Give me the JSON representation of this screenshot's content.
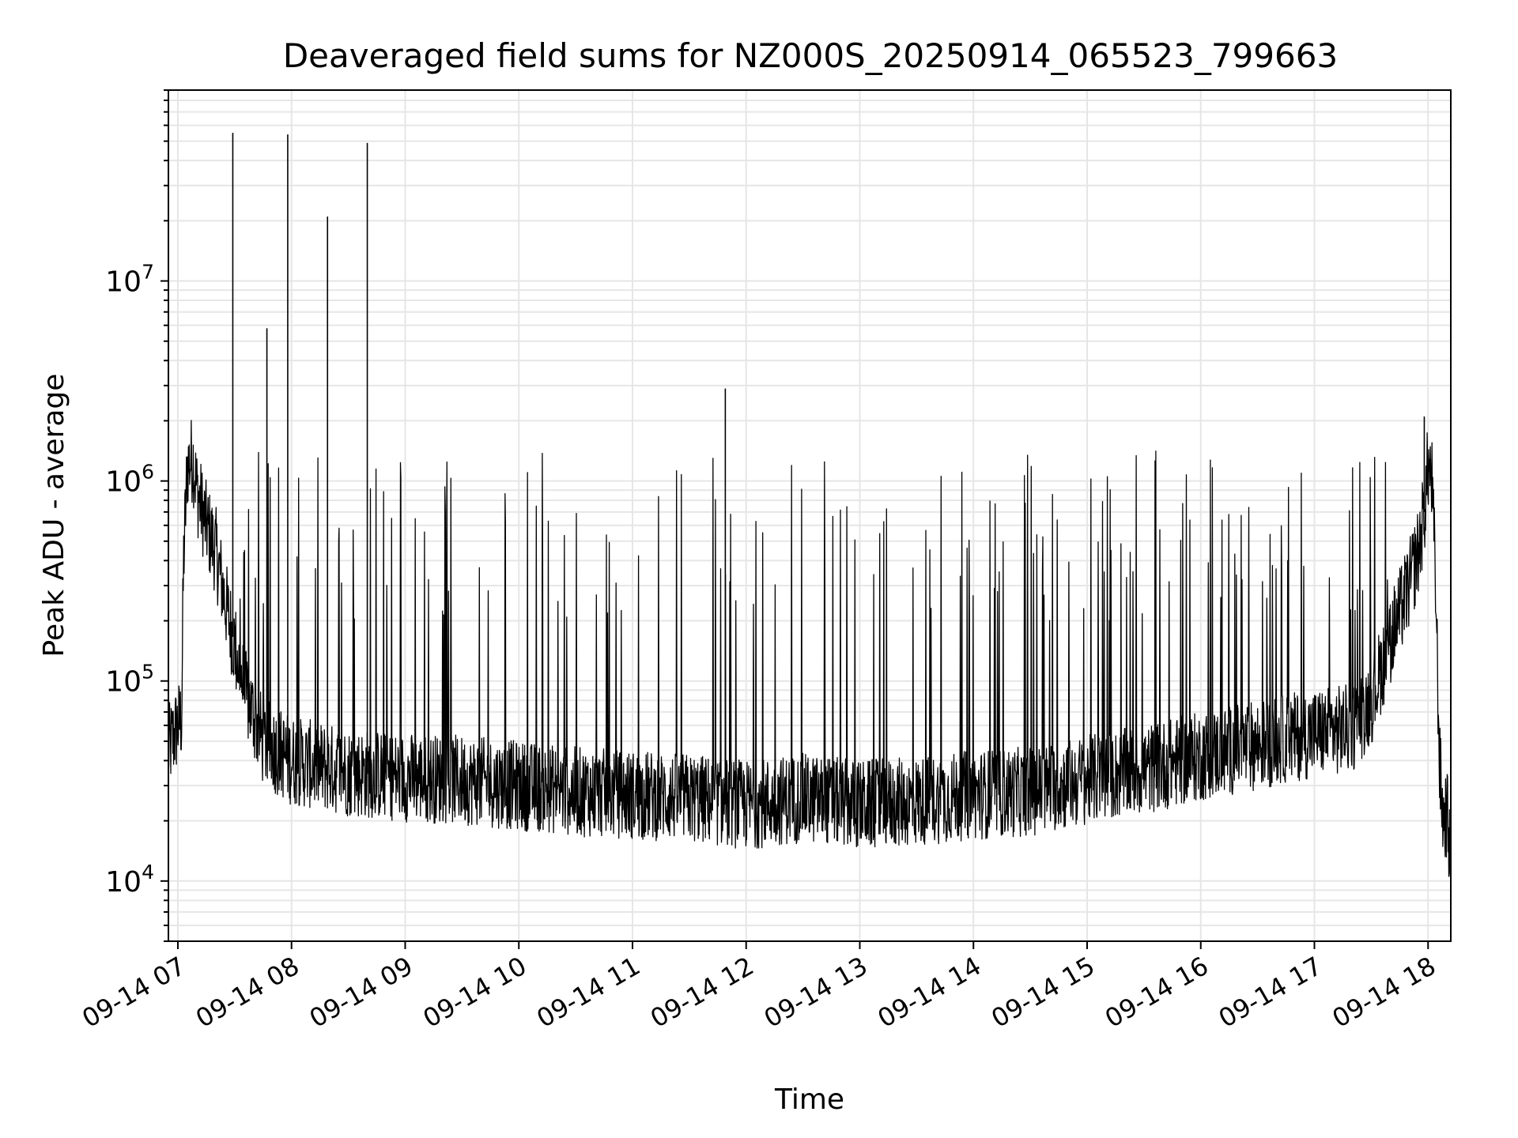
{
  "chart_data": {
    "type": "line",
    "title": "Deaveraged field sums for NZ000S_20250914_065523_799663",
    "xlabel": "Time",
    "ylabel": "Peak ADU - average",
    "yscale": "log",
    "grid": true,
    "legend": "none",
    "line_color": "#000000",
    "grid_color": "#e6e6e6",
    "xlim": [
      "2025-09-14 06:55",
      "2025-09-14 18:12"
    ],
    "ylim": [
      5000,
      90000000
    ],
    "x_ticks": [
      "2025-09-14 07:00",
      "2025-09-14 08:00",
      "2025-09-14 09:00",
      "2025-09-14 10:00",
      "2025-09-14 11:00",
      "2025-09-14 12:00",
      "2025-09-14 13:00",
      "2025-09-14 14:00",
      "2025-09-14 15:00",
      "2025-09-14 16:00",
      "2025-09-14 17:00",
      "2025-09-14 18:00"
    ],
    "x_tick_labels": [
      "09-14 07",
      "09-14 08",
      "09-14 09",
      "09-14 10",
      "09-14 11",
      "09-14 12",
      "09-14 13",
      "09-14 14",
      "09-14 15",
      "09-14 16",
      "09-14 17",
      "09-14 18"
    ],
    "y_ticks": [
      10000,
      100000,
      1000000,
      10000000
    ],
    "y_tick_labels": [
      {
        "base": "10",
        "exp": "4"
      },
      {
        "base": "10",
        "exp": "5"
      },
      {
        "base": "10",
        "exp": "6"
      },
      {
        "base": "10",
        "exp": "7"
      }
    ],
    "series": [
      {
        "x": [
          "2025-09-14 06:55",
          "2025-09-14 07:00",
          "2025-09-14 07:02",
          "2025-09-14 07:03",
          "2025-09-14 07:05",
          "2025-09-14 07:08",
          "2025-09-14 07:10",
          "2025-09-14 07:15",
          "2025-09-14 07:20",
          "2025-09-14 07:25",
          "2025-09-14 07:30",
          "2025-09-14 07:35",
          "2025-09-14 07:45",
          "2025-09-14 08:00",
          "2025-09-14 08:30",
          "2025-09-14 09:00",
          "2025-09-14 09:30",
          "2025-09-14 10:00",
          "2025-09-14 10:30",
          "2025-09-14 11:00",
          "2025-09-14 11:30",
          "2025-09-14 12:00",
          "2025-09-14 12:30",
          "2025-09-14 13:00",
          "2025-09-14 13:30",
          "2025-09-14 14:00",
          "2025-09-14 14:30",
          "2025-09-14 15:00",
          "2025-09-14 15:30",
          "2025-09-14 16:00",
          "2025-09-14 16:30",
          "2025-09-14 17:00",
          "2025-09-14 17:20",
          "2025-09-14 17:30",
          "2025-09-14 17:40",
          "2025-09-14 17:50",
          "2025-09-14 17:55",
          "2025-09-14 17:58",
          "2025-09-14 18:00",
          "2025-09-14 18:02",
          "2025-09-14 18:04",
          "2025-09-14 18:06",
          "2025-09-14 18:08",
          "2025-09-14 18:10",
          "2025-09-14 18:12"
        ],
        "y": [
          45000,
          60000,
          65000,
          400000,
          1200000,
          1300000,
          900000,
          600000,
          450000,
          250000,
          150000,
          90000,
          50000,
          40000,
          35000,
          33000,
          32000,
          30000,
          28000,
          27000,
          26000,
          24000,
          26000,
          24000,
          25000,
          27000,
          28000,
          32000,
          36000,
          42000,
          48000,
          55000,
          58000,
          80000,
          160000,
          300000,
          450000,
          700000,
          1200000,
          1000000,
          300000,
          40000,
          20000,
          22000,
          12000
        ]
      }
    ],
    "spikes": [
      {
        "x": "2025-09-14 07:29",
        "y": 55000000
      },
      {
        "x": "2025-09-14 07:47",
        "y": 5800000
      },
      {
        "x": "2025-09-14 07:58",
        "y": 54000000
      },
      {
        "x": "2025-09-14 08:19",
        "y": 21000000
      },
      {
        "x": "2025-09-14 08:40",
        "y": 49000000
      },
      {
        "x": "2025-09-14 11:49",
        "y": 2900000
      },
      {
        "x": "2025-09-14 17:58",
        "y": 2100000
      }
    ]
  }
}
